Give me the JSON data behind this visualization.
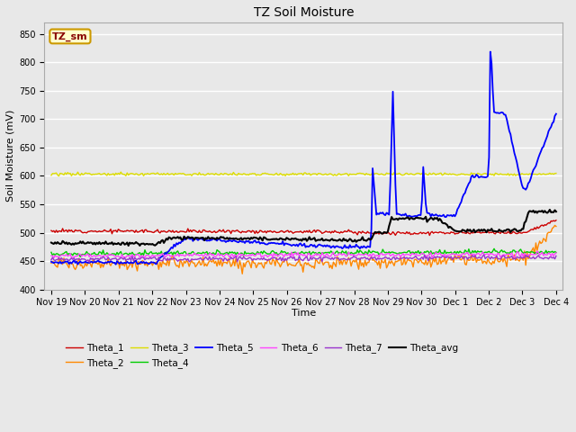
{
  "title": "TZ Soil Moisture",
  "xlabel": "Time",
  "ylabel": "Soil Moisture (mV)",
  "ylim": [
    400,
    870
  ],
  "yticks": [
    400,
    450,
    500,
    550,
    600,
    650,
    700,
    750,
    800,
    850
  ],
  "background_color": "#e8e8e8",
  "plot_bg_color": "#e8e8e8",
  "grid_color": "white",
  "series_colors": {
    "Theta_1": "#cc0000",
    "Theta_2": "#ff8800",
    "Theta_3": "#dddd00",
    "Theta_4": "#00cc00",
    "Theta_5": "#0000ff",
    "Theta_6": "#ff44ff",
    "Theta_7": "#9933cc",
    "Theta_avg": "#000000"
  },
  "label_box": {
    "text": "TZ_sm",
    "facecolor": "#ffffcc",
    "edgecolor": "#cc9900",
    "textcolor": "#880000"
  },
  "n_points": 16,
  "x_labels": [
    "Nov 19",
    "Nov 20",
    "Nov 21",
    "Nov 22",
    "Nov 23",
    "Nov 24",
    "Nov 25",
    "Nov 26",
    "Nov 27",
    "Nov 28",
    "Nov 29",
    "Nov 30",
    "Dec 1",
    "Dec 2",
    "Dec 3",
    "Dec 4"
  ]
}
